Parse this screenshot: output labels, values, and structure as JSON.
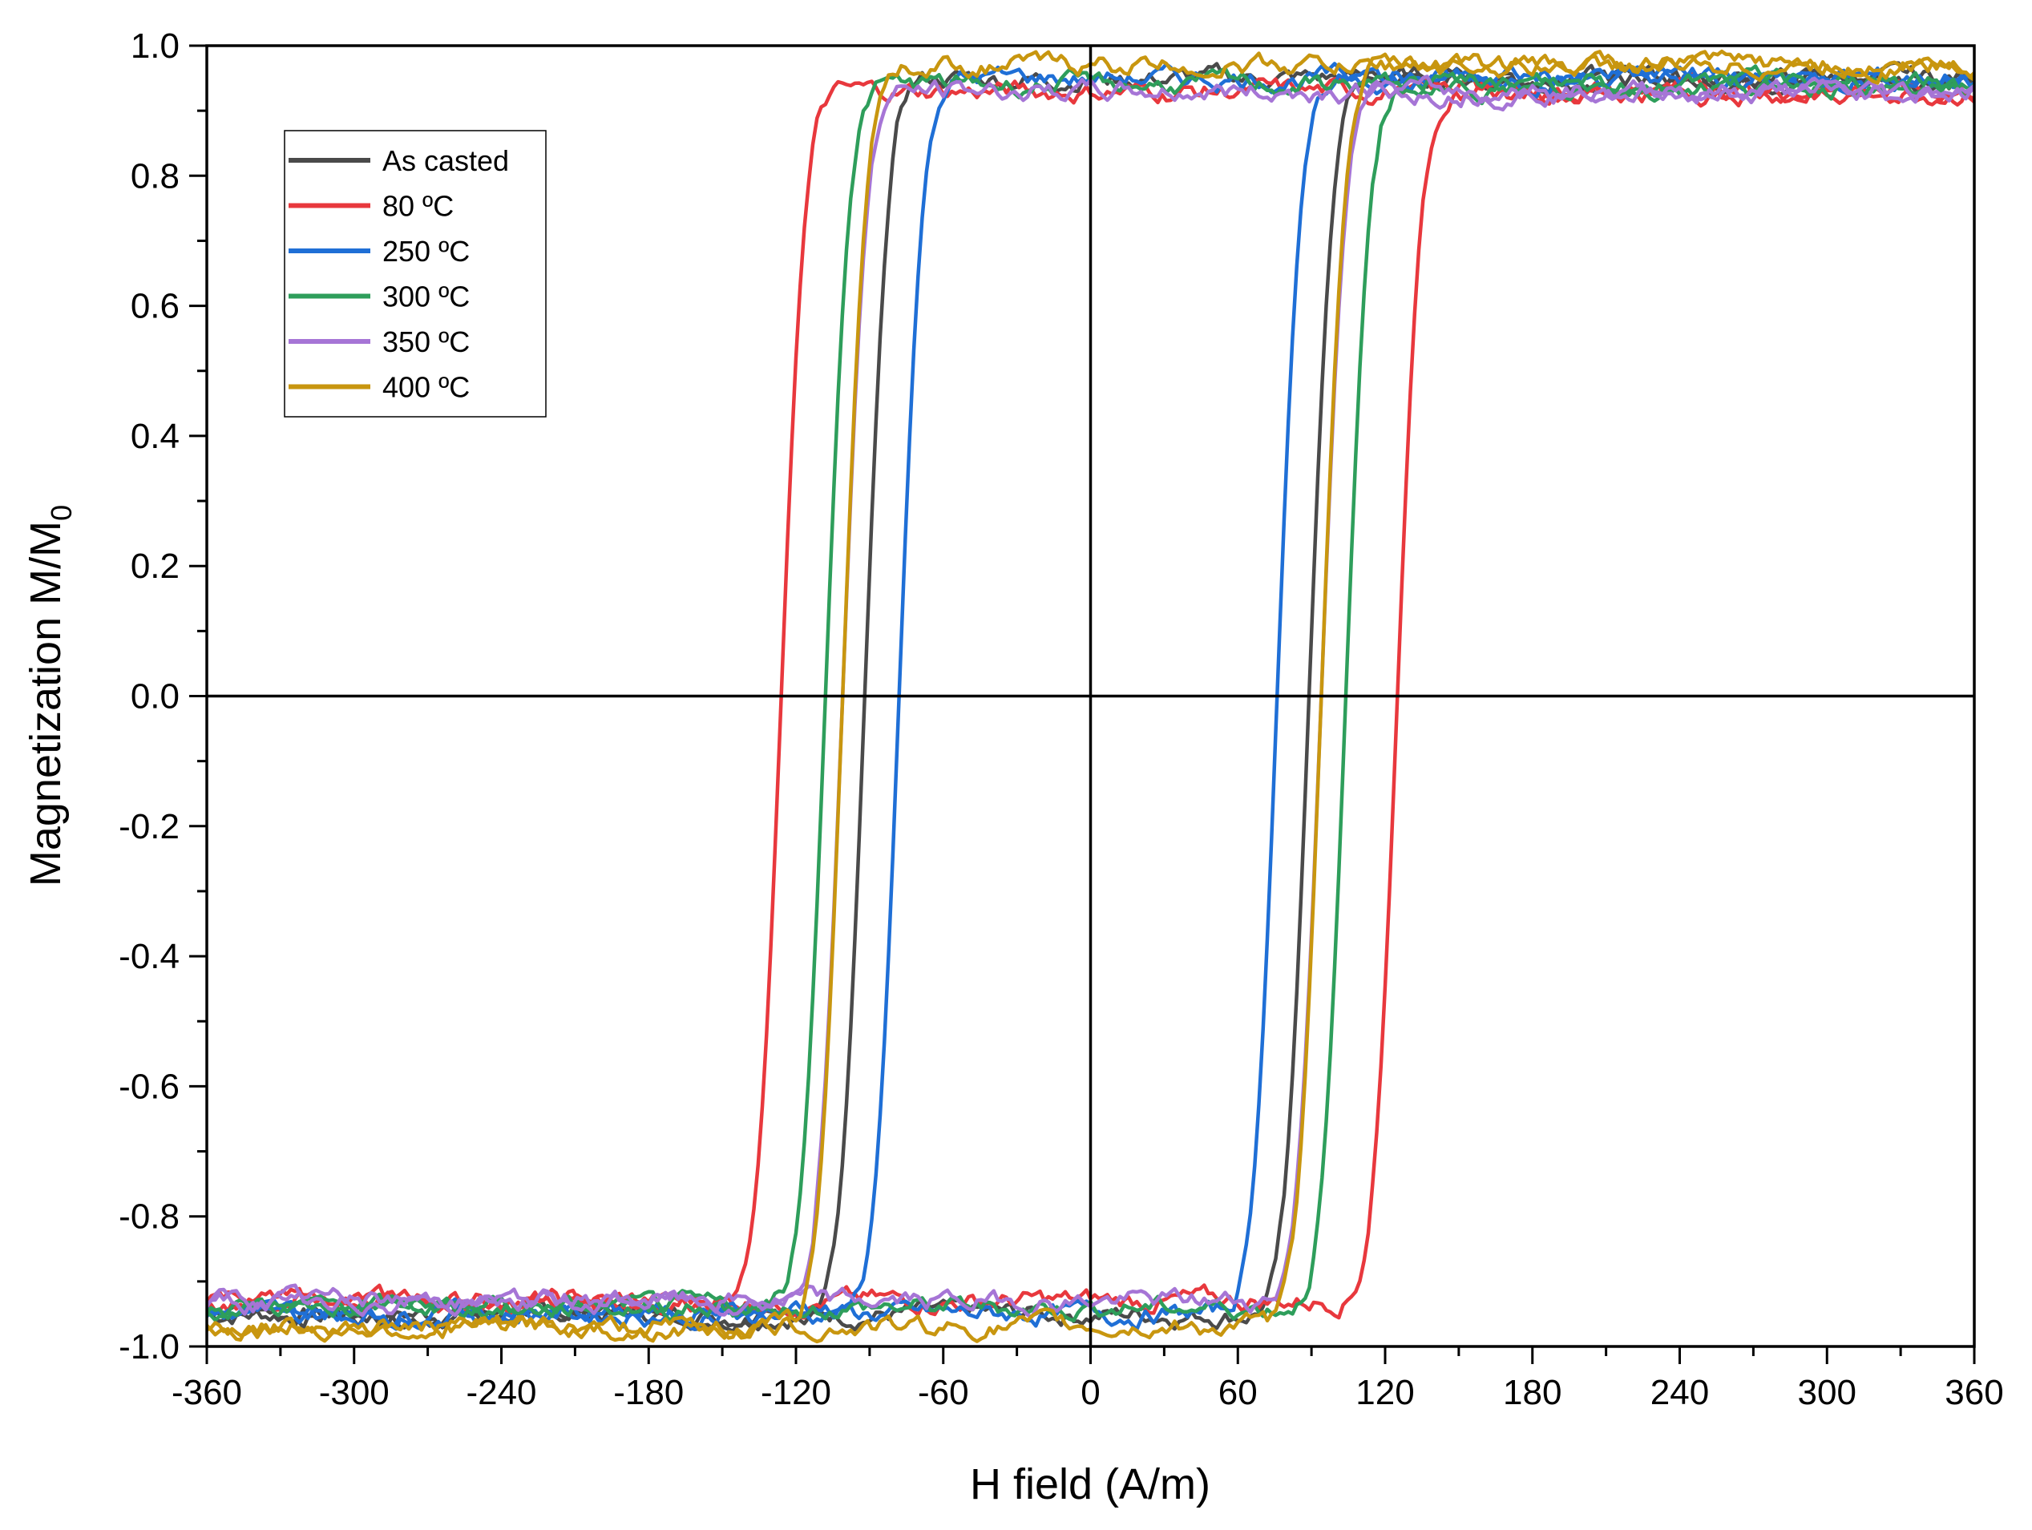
{
  "chart_data": {
    "type": "line",
    "title": "",
    "xlabel": "H field (A/m)",
    "ylabel": "Magnetization M/M",
    "ylabel_sub": "0",
    "xlim": [
      -360,
      360
    ],
    "ylim": [
      -1.0,
      1.0
    ],
    "x_ticks": [
      -360,
      -300,
      -240,
      -180,
      -120,
      -60,
      0,
      60,
      120,
      180,
      240,
      300,
      360
    ],
    "x_tick_labels": [
      "-360",
      "-300",
      "-240",
      "-180",
      "-120",
      "-60",
      "0",
      "60",
      "120",
      "180",
      "240",
      "300",
      "360"
    ],
    "y_ticks": [
      -1.0,
      -0.8,
      -0.6,
      -0.4,
      -0.2,
      0.0,
      0.2,
      0.4,
      0.6,
      0.8,
      1.0
    ],
    "y_tick_labels": [
      "-1.0",
      "-0.8",
      "-0.6",
      "-0.4",
      "-0.2",
      "0.0",
      "0.2",
      "0.4",
      "0.6",
      "0.8",
      "1.0"
    ],
    "grid": false,
    "legend_position": "top-left",
    "series": [
      {
        "name": "As casted",
        "color": "#4a4a4a",
        "hc_left": -92,
        "hc_right": 89,
        "m_sat": 0.95,
        "knee_top": 0.88,
        "knee_bottom": -0.91
      },
      {
        "name": "80 ºC",
        "color": "#e8383d",
        "hc_left": -126,
        "hc_right": 125,
        "m_sat": 0.93,
        "knee_top": 0.92,
        "knee_bottom": -0.93
      },
      {
        "name": "250 ºC",
        "color": "#1f6fd6",
        "hc_left": -78,
        "hc_right": 76,
        "m_sat": 0.95,
        "knee_top": 0.91,
        "knee_bottom": -0.91
      },
      {
        "name": "300 ºC",
        "color": "#2e9e5b",
        "hc_left": -108,
        "hc_right": 104,
        "m_sat": 0.94,
        "knee_top": 0.94,
        "knee_bottom": -0.94
      },
      {
        "name": "350 ºC",
        "color": "#a675d6",
        "hc_left": -101,
        "hc_right": 94,
        "m_sat": 0.93,
        "knee_top": 0.93,
        "knee_bottom": -0.94
      },
      {
        "name": "400 ºC",
        "color": "#c8960f",
        "hc_left": -101,
        "hc_right": 94,
        "m_sat": 0.97,
        "knee_top": 0.96,
        "knee_bottom": -0.96
      }
    ]
  }
}
